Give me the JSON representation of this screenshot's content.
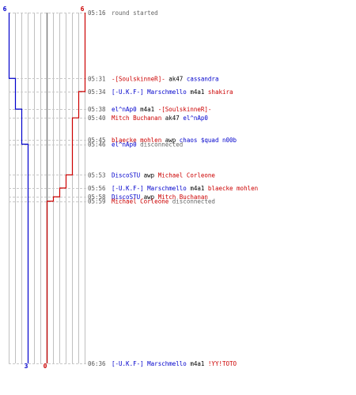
{
  "colors": {
    "blue": "#0000cc",
    "red": "#cc0000",
    "grid": "#c0c0c0",
    "axis": "#808080",
    "dashed": "#c8c8c8",
    "time": "#555555",
    "text": "#000000",
    "gray_text": "#666666"
  },
  "chart_data": {
    "type": "line",
    "title": "",
    "y_axis": "time",
    "y_range": [
      "05:16",
      "06:36"
    ],
    "x_axis": "players alive",
    "x_range": [
      -6,
      6
    ],
    "series": [
      {
        "team": "blue",
        "start_label": "6",
        "end_label": "3",
        "steps": [
          {
            "time": "05:16",
            "alive": 6
          },
          {
            "time": "05:31",
            "alive": 5
          },
          {
            "time": "05:38",
            "alive": 4
          },
          {
            "time": "05:46",
            "alive": 3
          },
          {
            "time": "06:36",
            "alive": 3
          }
        ]
      },
      {
        "team": "red",
        "start_label": "6",
        "end_label": "0",
        "steps": [
          {
            "time": "05:16",
            "alive": 6
          },
          {
            "time": "05:34",
            "alive": 5
          },
          {
            "time": "05:40",
            "alive": 4
          },
          {
            "time": "05:53",
            "alive": 3
          },
          {
            "time": "05:56",
            "alive": 2
          },
          {
            "time": "05:58",
            "alive": 1
          },
          {
            "time": "05:59",
            "alive": 0
          },
          {
            "time": "06:36",
            "alive": 0
          }
        ]
      }
    ],
    "events": [
      {
        "time": "05:16",
        "parts": [
          {
            "t": "round started",
            "c": "gray_text"
          }
        ]
      },
      {
        "time": "05:31",
        "parts": [
          {
            "t": "-[SoulskinneR]-",
            "c": "red"
          },
          {
            "t": " ak47 ",
            "c": "text"
          },
          {
            "t": "cassandra",
            "c": "blue"
          }
        ]
      },
      {
        "time": "05:34",
        "parts": [
          {
            "t": "[-U.K.F-] Marschmello",
            "c": "blue"
          },
          {
            "t": " m4a1 ",
            "c": "text"
          },
          {
            "t": "shakira",
            "c": "red"
          }
        ]
      },
      {
        "time": "05:38",
        "parts": [
          {
            "t": "el^nAp0",
            "c": "blue"
          },
          {
            "t": " m4a1 ",
            "c": "text"
          },
          {
            "t": "-[SoulskinneR]-",
            "c": "red"
          }
        ]
      },
      {
        "time": "05:40",
        "parts": [
          {
            "t": "Mitch Buchanan",
            "c": "red"
          },
          {
            "t": " ak47 ",
            "c": "text"
          },
          {
            "t": "el^nAp0",
            "c": "blue"
          }
        ]
      },
      {
        "time": "05:45",
        "parts": [
          {
            "t": "blaecke mohlen",
            "c": "red"
          },
          {
            "t": " awp ",
            "c": "text"
          },
          {
            "t": "chaos $quad n00b",
            "c": "blue"
          }
        ]
      },
      {
        "time": "05:46",
        "parts": [
          {
            "t": "el^nAp0",
            "c": "blue"
          },
          {
            "t": " disconnected",
            "c": "gray_text"
          }
        ]
      },
      {
        "time": "05:53",
        "parts": [
          {
            "t": "DiscoSTU",
            "c": "blue"
          },
          {
            "t": " awp ",
            "c": "text"
          },
          {
            "t": "Michael Corleone",
            "c": "red"
          }
        ]
      },
      {
        "time": "05:56",
        "parts": [
          {
            "t": "[-U.K.F-] Marschmello",
            "c": "blue"
          },
          {
            "t": " m4a1 ",
            "c": "text"
          },
          {
            "t": "blaecke mohlen",
            "c": "red"
          }
        ]
      },
      {
        "time": "05:58",
        "parts": [
          {
            "t": "DiscoSTU",
            "c": "blue"
          },
          {
            "t": " awp ",
            "c": "text"
          },
          {
            "t": "Mitch Buchanan",
            "c": "red"
          }
        ]
      },
      {
        "time": "05:59",
        "parts": [
          {
            "t": "Michael Corleone",
            "c": "red"
          },
          {
            "t": " disconnected",
            "c": "gray_text"
          }
        ]
      },
      {
        "time": "06:36",
        "parts": [
          {
            "t": "[-U.K.F-] Marschmello",
            "c": "blue"
          },
          {
            "t": " m4a1 ",
            "c": "text"
          },
          {
            "t": "!YY!TOTO",
            "c": "red"
          }
        ]
      }
    ]
  }
}
